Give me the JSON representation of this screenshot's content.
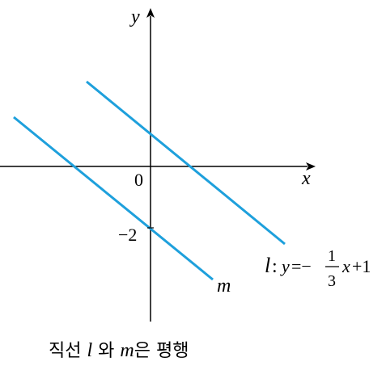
{
  "axes": {
    "x_label": "x",
    "y_label": "y",
    "origin": "0",
    "m_intercept": "−2"
  },
  "lines": {
    "l": {
      "name": "l",
      "colon": ":",
      "y": "y",
      "equals": "=−",
      "numerator": "1",
      "denominator": "3",
      "x": "x",
      "rest": "+1"
    },
    "m": {
      "name": "m"
    }
  },
  "caption": {
    "parts": [
      "직선 ",
      "l",
      " 와 ",
      "m",
      "은 평행"
    ]
  }
}
